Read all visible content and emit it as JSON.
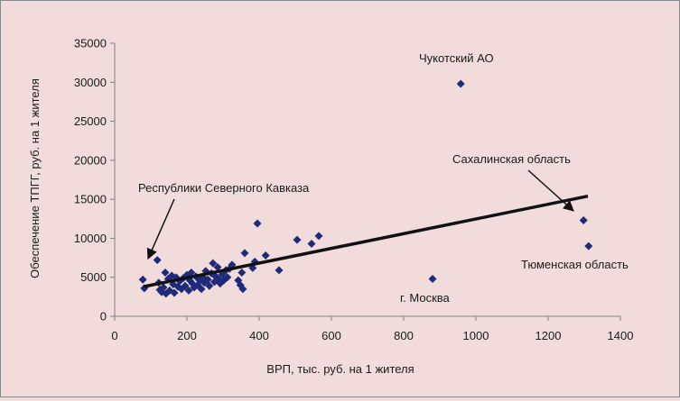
{
  "chart_data": {
    "type": "scatter",
    "title": "",
    "xlabel": "ВРП, тыс. руб. на 1 жителя",
    "ylabel": "Обеспечение ТПГГ, руб. на 1 жителя",
    "xlim": [
      0,
      1400
    ],
    "ylim": [
      0,
      35000
    ],
    "x_ticks": [
      0,
      200,
      400,
      600,
      800,
      1000,
      1200,
      1400
    ],
    "y_ticks": [
      0,
      5000,
      10000,
      15000,
      20000,
      25000,
      30000,
      35000
    ],
    "grid": false,
    "legend": "none",
    "marker_color": "#1f2a7a",
    "trend_color": "#111111",
    "series": [
      {
        "marker": "diamond",
        "points": [
          [
            78,
            4700
          ],
          [
            82,
            3600
          ],
          [
            118,
            7200
          ],
          [
            122,
            4300
          ],
          [
            125,
            3400
          ],
          [
            130,
            3100
          ],
          [
            135,
            3700
          ],
          [
            140,
            5600
          ],
          [
            142,
            2900
          ],
          [
            148,
            4800
          ],
          [
            152,
            3300
          ],
          [
            158,
            5200
          ],
          [
            162,
            4100
          ],
          [
            165,
            3000
          ],
          [
            170,
            5000
          ],
          [
            175,
            3800
          ],
          [
            180,
            4500
          ],
          [
            185,
            3500
          ],
          [
            190,
            4900
          ],
          [
            195,
            3900
          ],
          [
            200,
            5300
          ],
          [
            205,
            3300
          ],
          [
            208,
            4600
          ],
          [
            212,
            5600
          ],
          [
            215,
            4200
          ],
          [
            220,
            3700
          ],
          [
            225,
            5100
          ],
          [
            230,
            4000
          ],
          [
            235,
            4600
          ],
          [
            240,
            3500
          ],
          [
            245,
            5000
          ],
          [
            248,
            4300
          ],
          [
            252,
            5800
          ],
          [
            258,
            4700
          ],
          [
            262,
            3900
          ],
          [
            268,
            5500
          ],
          [
            272,
            6800
          ],
          [
            276,
            4400
          ],
          [
            280,
            5100
          ],
          [
            285,
            6300
          ],
          [
            288,
            4800
          ],
          [
            292,
            4200
          ],
          [
            298,
            5400
          ],
          [
            302,
            4600
          ],
          [
            308,
            5900
          ],
          [
            312,
            5000
          ],
          [
            318,
            6100
          ],
          [
            325,
            6600
          ],
          [
            342,
            4600
          ],
          [
            348,
            4000
          ],
          [
            352,
            5600
          ],
          [
            355,
            3500
          ],
          [
            360,
            8100
          ],
          [
            382,
            6200
          ],
          [
            388,
            7000
          ],
          [
            395,
            11900
          ],
          [
            418,
            7800
          ],
          [
            455,
            5900
          ],
          [
            505,
            9800
          ],
          [
            545,
            9300
          ],
          [
            565,
            10300
          ],
          [
            880,
            4800
          ],
          [
            958,
            29800
          ],
          [
            1298,
            12300
          ],
          [
            1312,
            9000
          ]
        ]
      }
    ],
    "trendline": [
      [
        80,
        3800
      ],
      [
        1310,
        15400
      ]
    ],
    "annotations": [
      {
        "text": "Чукотский АО"
      },
      {
        "text": "Сахалинская область"
      },
      {
        "text": "Республики Северного Кавказа"
      },
      {
        "text": "Тюменская область"
      },
      {
        "text": "г. Москва"
      }
    ]
  }
}
